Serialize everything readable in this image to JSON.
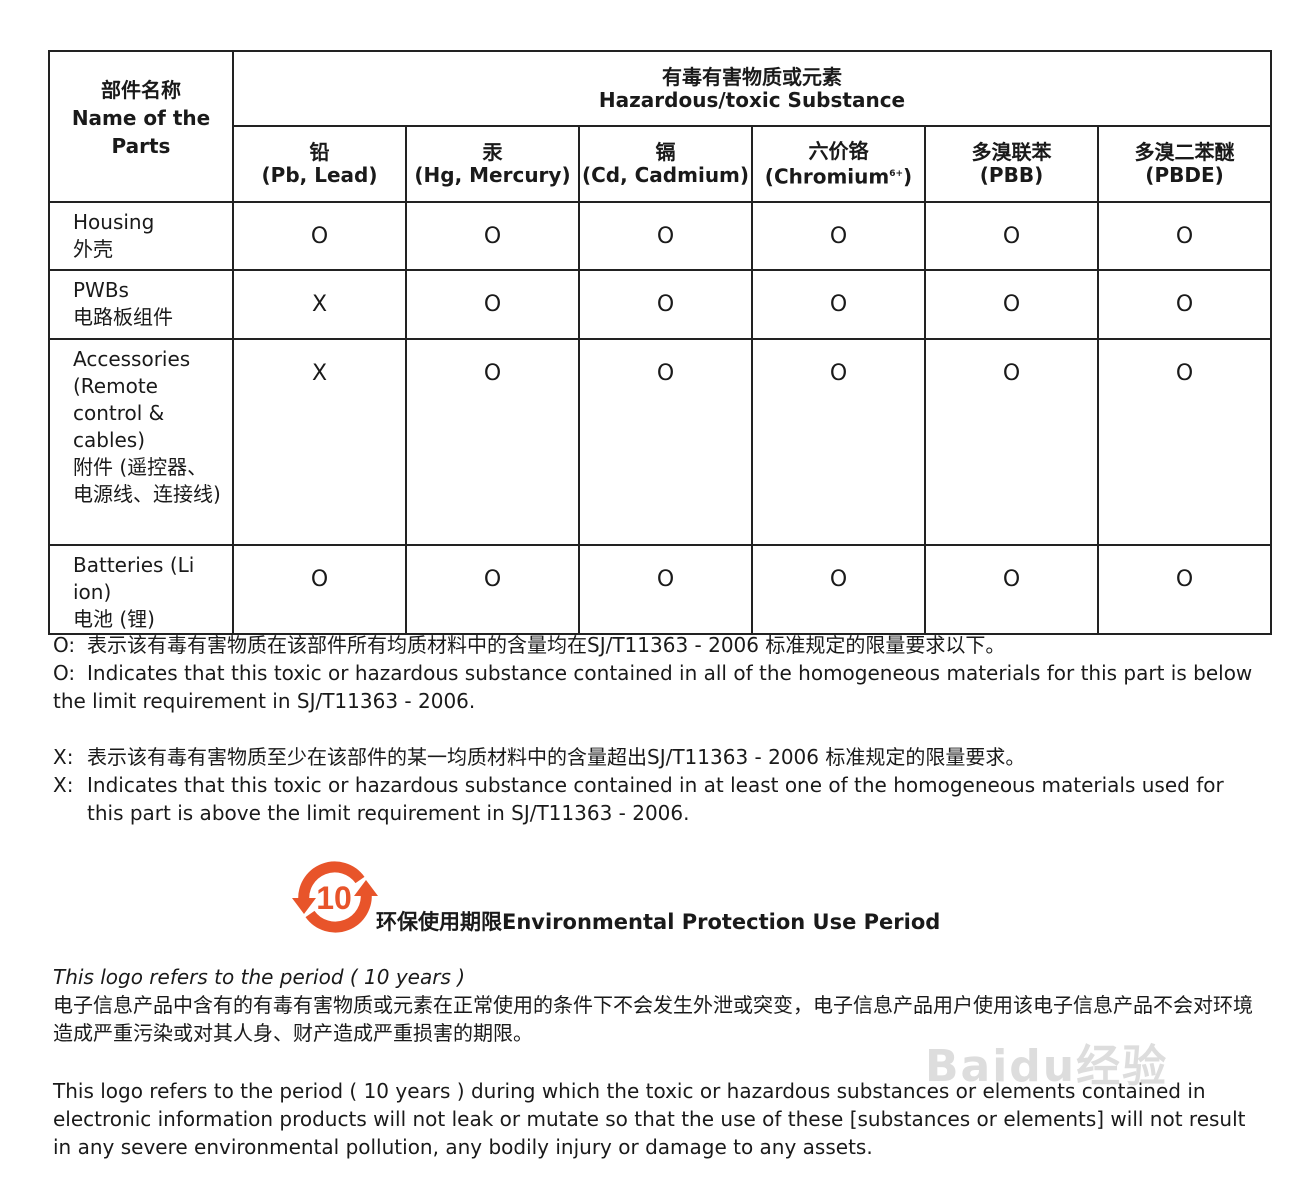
{
  "table": {
    "parts_header": {
      "zh": "部件名称",
      "en": "Name of the Parts"
    },
    "substance_header": {
      "zh": "有毒有害物质或元素",
      "en": "Hazardous/toxic Substance"
    },
    "columns": [
      {
        "zh": "铅",
        "en": "(Pb, Lead)"
      },
      {
        "zh": "汞",
        "en": "(Hg, Mercury)"
      },
      {
        "zh": "镉",
        "en": "(Cd, Cadmium)"
      },
      {
        "zh": "六价铬",
        "en": "(Chromium",
        "sup": "6+",
        "close": ")"
      },
      {
        "zh": "多溴联苯",
        "en": "(PBB)"
      },
      {
        "zh": "多溴二苯醚",
        "en": "(PBDE)"
      }
    ],
    "rows": [
      {
        "en": "Housing",
        "zh": "外壳",
        "marks": [
          "O",
          "O",
          "O",
          "O",
          "O",
          "O"
        ]
      },
      {
        "en": "PWBs",
        "zh": "电路板组件",
        "marks": [
          "X",
          "O",
          "O",
          "O",
          "O",
          "O"
        ]
      },
      {
        "en": "Accessories (Remote control & cables)",
        "zh": "附件 (遥控器、电源线、连接线)",
        "marks": [
          "X",
          "O",
          "O",
          "O",
          "O",
          "O"
        ]
      },
      {
        "en": "Batteries (Li ion)",
        "zh": "电池 (锂)",
        "marks": [
          "O",
          "O",
          "O",
          "O",
          "O",
          "O"
        ]
      }
    ]
  },
  "notes": {
    "o_label": "O:",
    "o_zh": "表示该有毒有害物质在该部件所有均质材料中的含量均在SJ/T11363 - 2006 标准规定的限量要求以下。",
    "o_en": "Indicates that this toxic or hazardous substance contained in all of the homogeneous materials for this part is below the limit requirement in SJ/T11363 - 2006.",
    "x_label": "X:",
    "x_zh": "表示该有毒有害物质至少在该部件的某一均质材料中的含量超出SJ/T11363 - 2006 标准规定的限量要求。",
    "x_en": "Indicates that this toxic or hazardous substance contained in at least one of the homogeneous materials used for this part is above the limit requirement in SJ/T11363 - 2006."
  },
  "logo": {
    "number": "10",
    "title": "环保使用期限Environmental Protection Use Period",
    "color": "#e8542a"
  },
  "period": {
    "italic": "This logo refers to the period ( 10 years )",
    "zh": "电子信息产品中含有的有毒有害物质或元素在正常使用的条件下不会发生外泄或突变，电子信息产品用户使用该电子信息产品不会对环境造成严重污染或对其人身、财产造成严重损害的期限。",
    "en": "This logo refers to the period ( 10 years ) during which the toxic or hazardous substances or elements contained in electronic information products will not leak or mutate so that the use of these [substances or elements] will not result in any severe environmental pollution, any bodily injury or damage to any assets."
  },
  "watermark": "Baidu经验"
}
